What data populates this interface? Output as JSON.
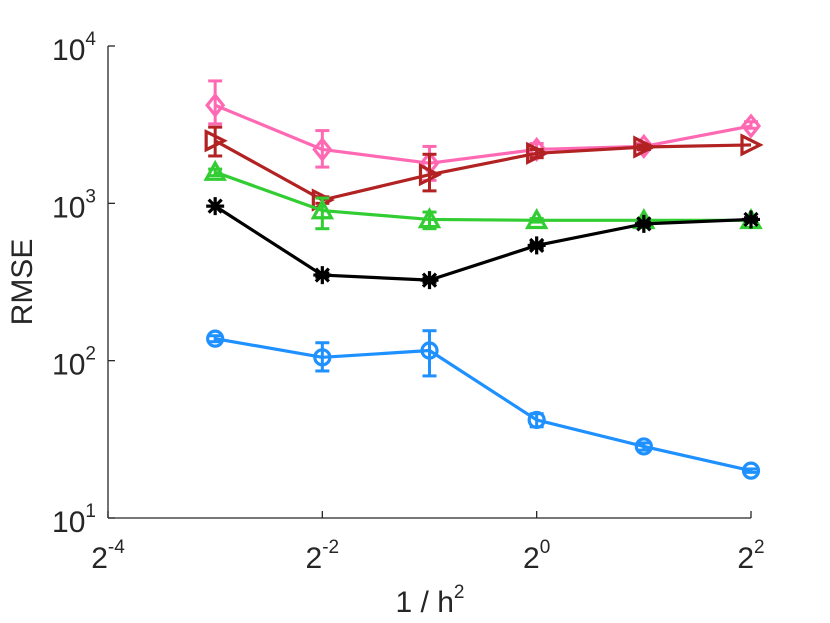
{
  "chart_data": {
    "type": "line",
    "xlabel": "1 / h",
    "xlabel_exponent": "2",
    "ylabel": "RMSE",
    "x_scale": "log2",
    "y_scale": "log10",
    "xlim": [
      0.0625,
      4
    ],
    "ylim": [
      10,
      10000
    ],
    "x_ticks": [
      {
        "value": 0.0625,
        "base": "2",
        "exp": "-4"
      },
      {
        "value": 0.25,
        "base": "2",
        "exp": "-2"
      },
      {
        "value": 1,
        "base": "2",
        "exp": "0"
      },
      {
        "value": 4,
        "base": "2",
        "exp": "2"
      }
    ],
    "y_ticks": [
      {
        "value": 10,
        "base": "10",
        "exp": "1"
      },
      {
        "value": 100,
        "base": "10",
        "exp": "2"
      },
      {
        "value": 1000,
        "base": "10",
        "exp": "3"
      },
      {
        "value": 10000,
        "base": "10",
        "exp": "4"
      }
    ],
    "grid": false,
    "legend": "none",
    "x": [
      0.125,
      0.25,
      0.5,
      1,
      2,
      4
    ],
    "series": [
      {
        "color": "#ff69b4",
        "marker": "diamond",
        "values": [
          4200,
          2200,
          1800,
          2200,
          2300,
          3100
        ],
        "err_low": [
          3200,
          1700,
          1400,
          2000,
          2200,
          3000
        ],
        "err_high": [
          6000,
          2900,
          2300,
          2400,
          2400,
          3300
        ]
      },
      {
        "color": "#b22222",
        "marker": "triangle-right",
        "values": [
          2500,
          1050,
          1520,
          2080,
          2280,
          2350
        ],
        "err_low": [
          2000,
          1000,
          1200,
          1950,
          2200,
          2300
        ],
        "err_high": [
          3050,
          1100,
          2050,
          2200,
          2350,
          2400
        ]
      },
      {
        "color": "#32cd32",
        "marker": "triangle-up",
        "values": [
          1580,
          900,
          790,
          780,
          780,
          780
        ],
        "err_low": [
          1500,
          690,
          690,
          760,
          760,
          760
        ],
        "err_high": [
          1650,
          1080,
          880,
          800,
          800,
          800
        ]
      },
      {
        "color": "#000000",
        "marker": "asterisk",
        "values": [
          960,
          350,
          325,
          540,
          740,
          790
        ],
        "err_low": [
          940,
          340,
          315,
          520,
          720,
          770
        ],
        "err_high": [
          980,
          360,
          335,
          560,
          760,
          810
        ]
      },
      {
        "color": "#1e90ff",
        "marker": "circle",
        "values": [
          138,
          105,
          116,
          42,
          28.5,
          20
        ],
        "err_low": [
          132,
          86,
          80,
          38,
          27,
          19.5
        ],
        "err_high": [
          144,
          130,
          155,
          46,
          30,
          20.5
        ]
      }
    ]
  }
}
